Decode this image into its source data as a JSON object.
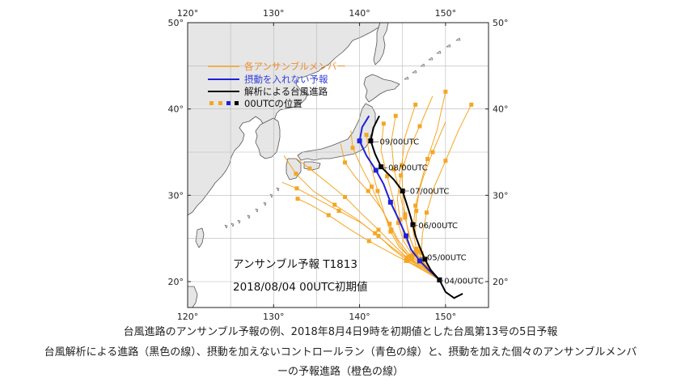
{
  "map": {
    "lon_range": [
      120,
      155
    ],
    "lat_range": [
      17,
      50
    ],
    "lon_ticks": [
      120,
      130,
      140,
      150
    ],
    "lat_ticks": [
      20,
      30,
      40,
      50
    ],
    "grid_lon": [
      125,
      130,
      135,
      140,
      145,
      150
    ],
    "grid_lat": [
      20,
      25,
      30,
      35,
      40,
      45
    ],
    "lon_tick_labels": [
      "120°",
      "130°",
      "140°",
      "150°"
    ],
    "lat_tick_labels": [
      "20°",
      "30°",
      "40°",
      "50°"
    ],
    "colors": {
      "land": "#e6e6e6",
      "coast": "#555555",
      "grid": "#b8b8b8",
      "ensemble": "#f5a623",
      "control": "#1e22d8",
      "analysis": "#000000",
      "legend_ensemble_text": "#f08c28",
      "legend_control_text": "#3540d8"
    }
  },
  "legend": {
    "ensemble": "各アンサンブルメンバー",
    "control": "摂動を入れない予報",
    "analysis": "解析による台風進路",
    "position": "00UTCの位置"
  },
  "forecast_title": "アンサンブル予報 T1813",
  "forecast_init": "2018/08/04 00UTC初期値",
  "date_labels": [
    {
      "text": "04/00UTC",
      "lon": 149.0,
      "lat": 20.1
    },
    {
      "text": "05/00UTC",
      "lon": 147.0,
      "lat": 22.8
    },
    {
      "text": "06/00UTC",
      "lon": 146.0,
      "lat": 26.5
    },
    {
      "text": "07/00UTC",
      "lon": 145.0,
      "lat": 30.5
    },
    {
      "text": "08/00UTC",
      "lon": 142.5,
      "lat": 33.2
    },
    {
      "text": "09/00UTC",
      "lon": 141.5,
      "lat": 36.2
    }
  ],
  "tracks": {
    "analysis": [
      [
        152.0,
        18.6
      ],
      [
        151.0,
        18.1
      ],
      [
        150.0,
        18.8
      ],
      [
        149.3,
        20.2
      ],
      [
        148.3,
        21.3
      ],
      [
        147.6,
        22.6
      ],
      [
        147.0,
        24.0
      ],
      [
        146.5,
        25.3
      ],
      [
        146.2,
        26.6
      ],
      [
        145.7,
        28.3
      ],
      [
        145.0,
        30.5
      ],
      [
        144.0,
        31.8
      ],
      [
        142.5,
        33.3
      ],
      [
        141.8,
        34.8
      ],
      [
        141.3,
        36.3
      ],
      [
        141.6,
        37.8
      ],
      [
        142.3,
        39.2
      ]
    ],
    "analysis_points": [
      [
        149.3,
        20.2
      ],
      [
        147.6,
        22.6
      ],
      [
        146.2,
        26.6
      ],
      [
        145.0,
        30.5
      ],
      [
        142.5,
        33.3
      ],
      [
        141.3,
        36.3
      ]
    ],
    "control": [
      [
        149.3,
        20.2
      ],
      [
        148.2,
        21.2
      ],
      [
        147.0,
        22.4
      ],
      [
        146.0,
        23.7
      ],
      [
        145.4,
        25.3
      ],
      [
        144.6,
        27.1
      ],
      [
        143.6,
        29.2
      ],
      [
        142.8,
        31.3
      ],
      [
        141.9,
        32.9
      ],
      [
        140.8,
        34.6
      ],
      [
        140.0,
        36.3
      ],
      [
        140.3,
        37.9
      ],
      [
        141.1,
        39.2
      ]
    ],
    "control_points": [
      [
        149.3,
        20.2
      ],
      [
        147.0,
        22.4
      ],
      [
        145.4,
        25.3
      ],
      [
        143.6,
        29.2
      ],
      [
        141.9,
        32.9
      ],
      [
        140.0,
        36.3
      ]
    ],
    "ensemble": [
      [
        [
          149.3,
          20.2
        ],
        [
          148.0,
          21.6
        ],
        [
          147.2,
          23.3
        ],
        [
          147.3,
          25.5
        ],
        [
          147.8,
          28.0
        ],
        [
          148.7,
          31.0
        ],
        [
          150.0,
          34.0
        ],
        [
          151.5,
          37.5
        ],
        [
          153.0,
          40.5
        ]
      ],
      [
        [
          149.3,
          20.2
        ],
        [
          148.0,
          21.8
        ],
        [
          147.0,
          23.5
        ],
        [
          146.5,
          25.6
        ],
        [
          146.6,
          28.2
        ],
        [
          147.0,
          31.0
        ],
        [
          147.9,
          34.2
        ],
        [
          149.0,
          37.5
        ],
        [
          150.0,
          42.0
        ]
      ],
      [
        [
          149.3,
          20.2
        ],
        [
          147.8,
          21.8
        ],
        [
          146.5,
          23.4
        ],
        [
          145.7,
          25.4
        ],
        [
          145.3,
          27.8
        ],
        [
          145.0,
          30.5
        ],
        [
          144.9,
          33.5
        ],
        [
          145.3,
          36.8
        ],
        [
          146.5,
          40.5
        ]
      ],
      [
        [
          149.3,
          20.2
        ],
        [
          147.8,
          21.7
        ],
        [
          146.6,
          23.2
        ],
        [
          145.9,
          25.0
        ],
        [
          145.3,
          27.4
        ],
        [
          144.7,
          30.2
        ],
        [
          144.0,
          33.0
        ],
        [
          143.7,
          36.3
        ],
        [
          144.2,
          39.2
        ]
      ],
      [
        [
          149.3,
          20.2
        ],
        [
          147.6,
          21.6
        ],
        [
          146.2,
          23.0
        ],
        [
          145.1,
          24.7
        ],
        [
          144.5,
          26.8
        ],
        [
          144.0,
          29.3
        ],
        [
          143.2,
          32.2
        ],
        [
          142.5,
          35.2
        ],
        [
          142.8,
          38.3
        ]
      ],
      [
        [
          149.3,
          20.2
        ],
        [
          147.7,
          21.4
        ],
        [
          146.1,
          22.6
        ],
        [
          144.6,
          24.0
        ],
        [
          143.6,
          25.8
        ],
        [
          142.9,
          27.8
        ],
        [
          142.1,
          30.5
        ],
        [
          141.3,
          33.5
        ],
        [
          140.8,
          37.0
        ]
      ],
      [
        [
          149.3,
          20.2
        ],
        [
          147.6,
          21.5
        ],
        [
          146.0,
          22.6
        ],
        [
          144.7,
          24.2
        ],
        [
          143.7,
          26.0
        ],
        [
          142.7,
          28.2
        ],
        [
          141.0,
          30.5
        ],
        [
          139.6,
          32.0
        ],
        [
          138.3,
          33.8
        ],
        [
          137.8,
          36.0
        ]
      ],
      [
        [
          149.3,
          20.2
        ],
        [
          147.5,
          21.3
        ],
        [
          145.6,
          22.4
        ],
        [
          143.8,
          23.8
        ],
        [
          142.2,
          25.3
        ],
        [
          140.2,
          26.8
        ],
        [
          137.6,
          28.2
        ],
        [
          135.0,
          29.6
        ],
        [
          132.7,
          30.8
        ],
        [
          131.0,
          31.5
        ]
      ],
      [
        [
          149.3,
          20.2
        ],
        [
          147.4,
          21.4
        ],
        [
          145.5,
          22.7
        ],
        [
          143.6,
          24.1
        ],
        [
          141.8,
          25.6
        ],
        [
          139.6,
          27.3
        ],
        [
          137.1,
          28.9
        ],
        [
          134.6,
          30.5
        ],
        [
          132.6,
          32.5
        ],
        [
          131.2,
          34.6
        ]
      ],
      [
        [
          149.3,
          20.2
        ],
        [
          147.5,
          21.5
        ],
        [
          145.5,
          22.8
        ],
        [
          143.8,
          24.4
        ],
        [
          142.2,
          26.0
        ],
        [
          140.3,
          27.8
        ],
        [
          138.3,
          29.8
        ],
        [
          136.2,
          31.5
        ],
        [
          134.2,
          33.1
        ],
        [
          132.6,
          34.3
        ]
      ],
      [
        [
          149.3,
          20.2
        ],
        [
          147.4,
          21.3
        ],
        [
          145.4,
          22.4
        ],
        [
          143.3,
          23.5
        ],
        [
          141.1,
          24.7
        ],
        [
          138.8,
          26.1
        ],
        [
          136.4,
          27.7
        ],
        [
          134.3,
          28.9
        ],
        [
          132.8,
          29.6
        ]
      ],
      [
        [
          149.3,
          20.2
        ],
        [
          147.6,
          21.6
        ],
        [
          145.9,
          23.0
        ],
        [
          144.5,
          24.8
        ],
        [
          143.5,
          26.7
        ],
        [
          142.4,
          28.7
        ],
        [
          141.4,
          31.0
        ],
        [
          140.2,
          33.3
        ],
        [
          139.2,
          35.5
        ],
        [
          139.0,
          37.5
        ]
      ],
      [
        [
          149.3,
          20.2
        ],
        [
          147.7,
          21.7
        ],
        [
          146.3,
          23.2
        ],
        [
          145.3,
          25.0
        ],
        [
          144.7,
          27.2
        ],
        [
          144.4,
          29.6
        ],
        [
          144.8,
          32.3
        ],
        [
          145.6,
          35.0
        ],
        [
          147.0,
          38.0
        ],
        [
          148.5,
          41.5
        ]
      ],
      [
        [
          149.3,
          20.2
        ],
        [
          147.7,
          21.9
        ],
        [
          146.6,
          23.8
        ],
        [
          146.2,
          26.0
        ],
        [
          146.5,
          28.8
        ],
        [
          147.3,
          31.8
        ],
        [
          148.5,
          35.0
        ],
        [
          150.0,
          38.5
        ]
      ]
    ],
    "ensemble_points_step": 2
  },
  "caption": [
    "台風進路のアンサンブル予報の例、2018年8月4日9時を初期値とした台風第13号の5日予報",
    "台風解析による進路（黒色の線）、摂動を加えないコントロールラン（青色の線）と、摂動を加えた個々のアンサンブルメンバ",
    "ーの予報進路（橙色の線）"
  ]
}
